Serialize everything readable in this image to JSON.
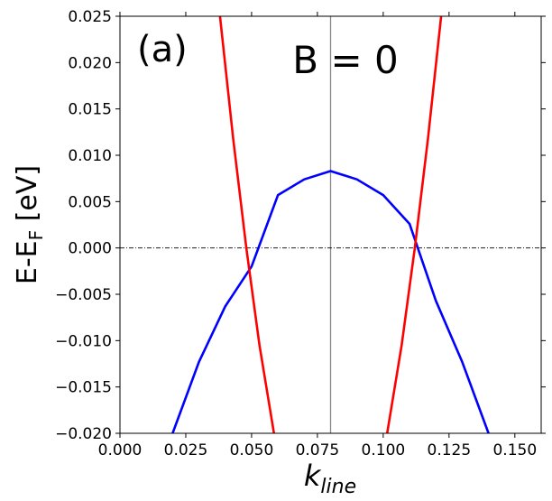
{
  "chart_data": {
    "type": "line",
    "panel_label": "(a)",
    "annotation": "B = 0",
    "xlabel_main": "k",
    "xlabel_sub": "line",
    "ylabel_main": "E-E",
    "ylabel_sub": "F",
    "ylabel_unit": " [eV]",
    "xlim": [
      0.0,
      0.16
    ],
    "ylim": [
      -0.02,
      0.025
    ],
    "xticks": [
      0.0,
      0.025,
      0.05,
      0.075,
      0.1,
      0.125,
      0.15
    ],
    "xtick_labels": [
      "0.000",
      "0.025",
      "0.050",
      "0.075",
      "0.100",
      "0.125",
      "0.150"
    ],
    "yticks": [
      -0.02,
      -0.015,
      -0.01,
      -0.005,
      0.0,
      0.005,
      0.01,
      0.015,
      0.02,
      0.025
    ],
    "ytick_labels": [
      "−0.020",
      "−0.015",
      "−0.010",
      "−0.005",
      "0.000",
      "0.005",
      "0.010",
      "0.015",
      "0.020",
      "0.025"
    ],
    "reference_lines": {
      "vertical_x": 0.08,
      "horizontal_y": 0.0
    },
    "series": [
      {
        "color": "#0000ff",
        "x": [
          0.02,
          0.03,
          0.04,
          0.05,
          0.06,
          0.07,
          0.08,
          0.09,
          0.1,
          0.11,
          0.12,
          0.13,
          0.14
        ],
        "y": [
          -0.02,
          -0.0123,
          -0.0063,
          -0.002,
          0.0057,
          0.0074,
          0.0083,
          0.0074,
          0.0057,
          0.0026,
          -0.0057,
          -0.0123,
          -0.02
        ]
      },
      {
        "color": "#ff0000",
        "x": [
          0.038,
          0.043,
          0.048,
          0.053,
          0.0585
        ],
        "y": [
          0.025,
          0.0118,
          0.0,
          -0.0105,
          -0.02
        ]
      },
      {
        "color": "#ff0000",
        "x": [
          0.1015,
          0.107,
          0.112,
          0.117,
          0.122
        ],
        "y": [
          -0.02,
          -0.0105,
          0.0,
          0.0118,
          0.025
        ]
      }
    ]
  }
}
